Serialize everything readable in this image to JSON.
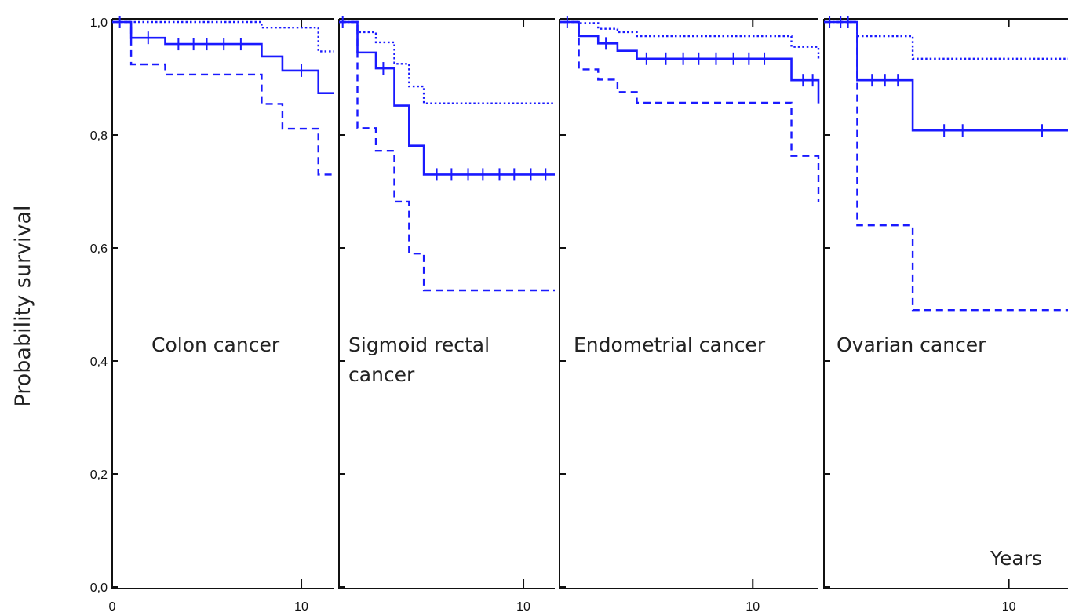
{
  "chart_data": {
    "type": "line",
    "ylabel": "Probability survival",
    "xlabel": "Years",
    "ylim": [
      0,
      1
    ],
    "yticks": [
      0.0,
      0.2,
      0.4,
      0.6,
      0.8,
      1.0
    ],
    "ytick_labels": [
      "0,0",
      "0,2",
      "0,4",
      "0,6",
      "0,8",
      "1,0"
    ],
    "xtick_labels": [
      "0",
      "10"
    ],
    "line_color": "#1a1aff",
    "grid": false,
    "legend": "none",
    "panels": [
      {
        "name": "Colon cancer",
        "label_lines": [
          "Colon cancer"
        ],
        "xlim": [
          0,
          11.7
        ],
        "xticks": [
          0,
          10
        ],
        "series": [
          {
            "style": "solid",
            "x": [
              0,
              1,
              2.8,
              7.9,
              9,
              10.9,
              11.7
            ],
            "y": [
              1.0,
              0.972,
              0.961,
              0.939,
              0.914,
              0.874,
              0.874
            ],
            "censor_x": [
              0.4,
              1.9,
              3.5,
              4.3,
              5.0,
              5.9,
              6.8,
              10.0
            ]
          },
          {
            "style": "dashed",
            "x": [
              0,
              1,
              2.8,
              7.9,
              9,
              10.9,
              11.7
            ],
            "y": [
              1.0,
              0.925,
              0.907,
              0.855,
              0.811,
              0.73,
              0.73
            ]
          },
          {
            "style": "dotted",
            "x": [
              0,
              7.9,
              10.9,
              11.7
            ],
            "y": [
              1.0,
              0.99,
              0.948,
              0.948
            ]
          }
        ]
      },
      {
        "name": "Sigmoid rectal cancer",
        "label_lines": [
          "Sigmoid rectal",
          "cancer"
        ],
        "xlim": [
          0,
          11.7
        ],
        "xticks": [
          10
        ],
        "series": [
          {
            "style": "solid",
            "x": [
              0,
              1,
              2,
              3,
              3.8,
              4.6,
              11.7
            ],
            "y": [
              1.0,
              0.946,
              0.918,
              0.852,
              0.781,
              0.73,
              0.73
            ],
            "censor_x": [
              0.2,
              2.4,
              5.3,
              6.1,
              7.0,
              7.8,
              8.7,
              9.5,
              10.4,
              11.2
            ]
          },
          {
            "style": "dashed",
            "x": [
              0,
              1,
              2,
              3,
              3.8,
              4.6,
              11.7
            ],
            "y": [
              1.0,
              0.812,
              0.772,
              0.682,
              0.59,
              0.525,
              0.525
            ]
          },
          {
            "style": "dotted",
            "x": [
              0,
              1,
              2,
              3,
              3.8,
              4.6,
              11.7
            ],
            "y": [
              1.0,
              0.982,
              0.964,
              0.926,
              0.886,
              0.856,
              0.856
            ]
          }
        ]
      },
      {
        "name": "Endometrial cancer",
        "label_lines": [
          "Endometrial cancer"
        ],
        "xlim": [
          0,
          13.4
        ],
        "xticks": [
          10
        ],
        "series": [
          {
            "style": "solid",
            "x": [
              0,
              1,
              2,
              3,
              4,
              11,
              12,
              13.4
            ],
            "y": [
              1.0,
              0.975,
              0.962,
              0.949,
              0.935,
              0.935,
              0.897,
              0.856
            ],
            "censor_x": [
              0.4,
              2.4,
              4.5,
              5.5,
              6.4,
              7.2,
              8.1,
              9.0,
              9.8,
              10.6,
              12.6,
              13.1
            ]
          },
          {
            "style": "dashed",
            "x": [
              0,
              1,
              2,
              3,
              4,
              11,
              12,
              13.4
            ],
            "y": [
              1.0,
              0.916,
              0.898,
              0.876,
              0.857,
              0.857,
              0.763,
              0.682
            ]
          },
          {
            "style": "dotted",
            "x": [
              0,
              1,
              2,
              3,
              4,
              11,
              12,
              13.4
            ],
            "y": [
              1.0,
              0.998,
              0.988,
              0.982,
              0.975,
              0.975,
              0.956,
              0.935
            ]
          }
        ]
      },
      {
        "name": "Ovarian cancer",
        "label_lines": [
          "Ovarian cancer"
        ],
        "xlim": [
          0,
          13.2
        ],
        "xticks": [
          10
        ],
        "series": [
          {
            "style": "solid",
            "x": [
              0,
              1.8,
              4.8,
              13.2
            ],
            "y": [
              1.0,
              0.897,
              0.808,
              0.808
            ],
            "censor_x": [
              0.3,
              0.9,
              1.3,
              2.6,
              3.3,
              4.0,
              6.5,
              7.5,
              11.8
            ]
          },
          {
            "style": "dashed",
            "x": [
              0,
              1.8,
              4.8,
              13.2
            ],
            "y": [
              1.0,
              0.64,
              0.49,
              0.49
            ]
          },
          {
            "style": "dotted",
            "x": [
              0,
              1.8,
              4.8,
              13.2
            ],
            "y": [
              1.0,
              0.975,
              0.935,
              0.935
            ]
          }
        ]
      }
    ]
  }
}
